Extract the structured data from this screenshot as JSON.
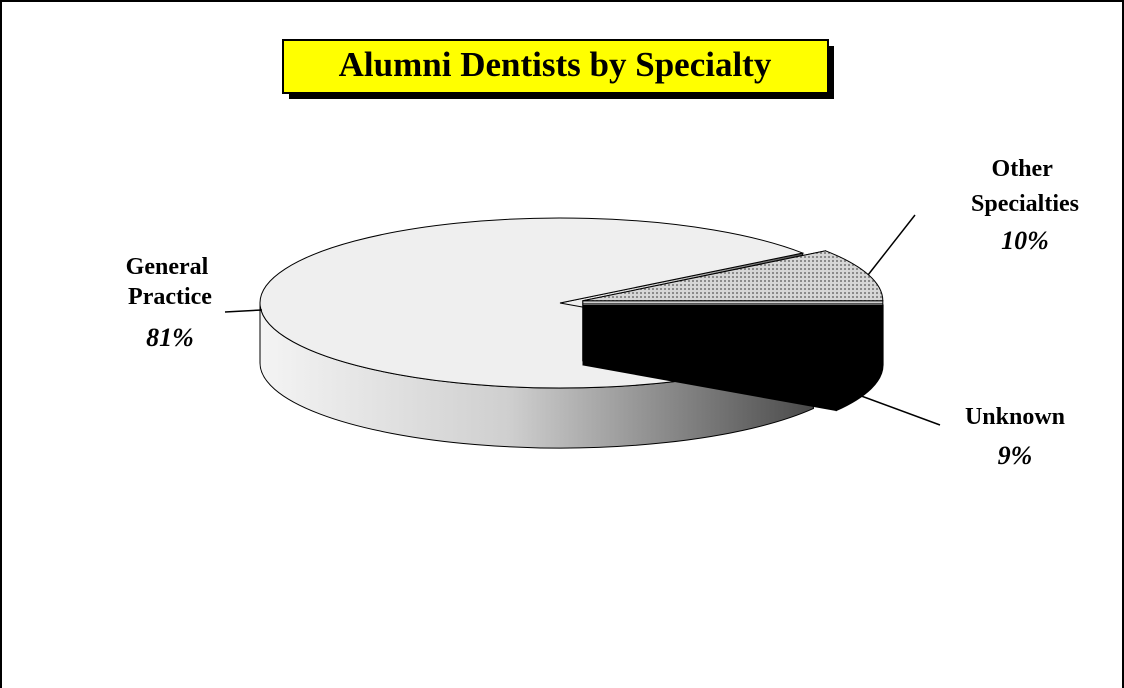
{
  "chart_data": {
    "type": "pie",
    "title": "Alumni Dentists by Specialty",
    "categories": [
      "General Practice",
      "Other Specialties",
      "Unknown"
    ],
    "values": [
      81,
      10,
      9
    ],
    "value_labels": [
      "81%",
      "10%",
      "9%"
    ],
    "colors": [
      "#efefef",
      "#c4c4c4",
      "#000000"
    ]
  }
}
